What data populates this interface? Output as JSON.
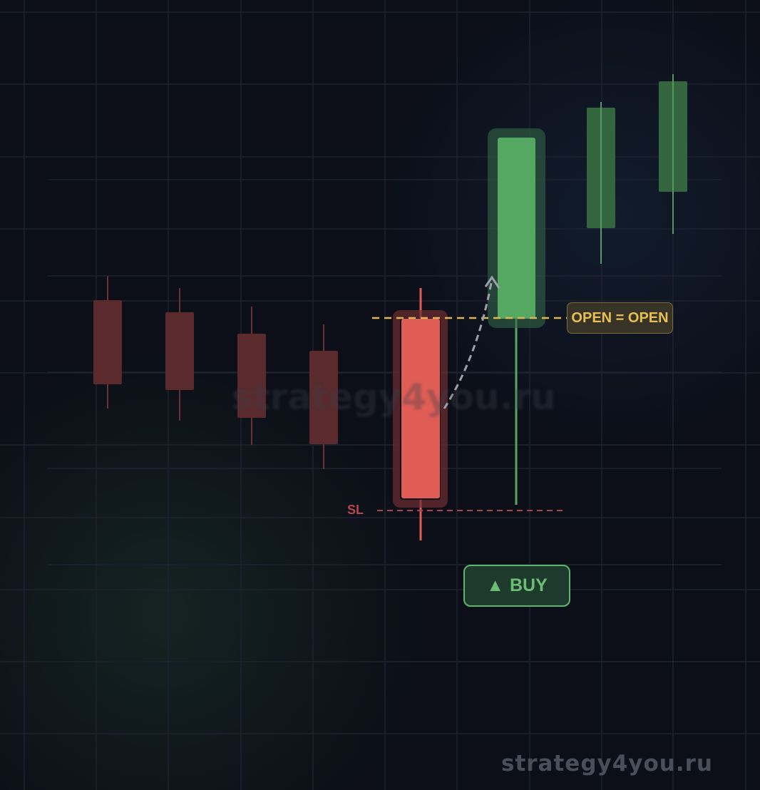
{
  "diagram": {
    "open_label": "OPEN = OPEN",
    "sl_label": "SL",
    "buy_button": {
      "icon": "triangle-up-icon",
      "label": "BUY",
      "glyph": "▲"
    },
    "watermark_center": "strategy4you.ru",
    "watermark_bottom": "strategy4you.ru",
    "candles": [
      {
        "type": "bearish",
        "state": "faded"
      },
      {
        "type": "bearish",
        "state": "faded"
      },
      {
        "type": "bearish",
        "state": "faded"
      },
      {
        "type": "bearish",
        "state": "faded"
      },
      {
        "type": "bearish",
        "state": "highlighted"
      },
      {
        "type": "bullish",
        "state": "highlighted"
      },
      {
        "type": "bullish",
        "state": "faded"
      },
      {
        "type": "bullish",
        "state": "faded"
      }
    ],
    "colors": {
      "bearish": "#e05d55",
      "bullish": "#55a862",
      "open_line": "#e0b44e",
      "sl_line": "#a8454a",
      "background": "#0c0f18"
    }
  }
}
